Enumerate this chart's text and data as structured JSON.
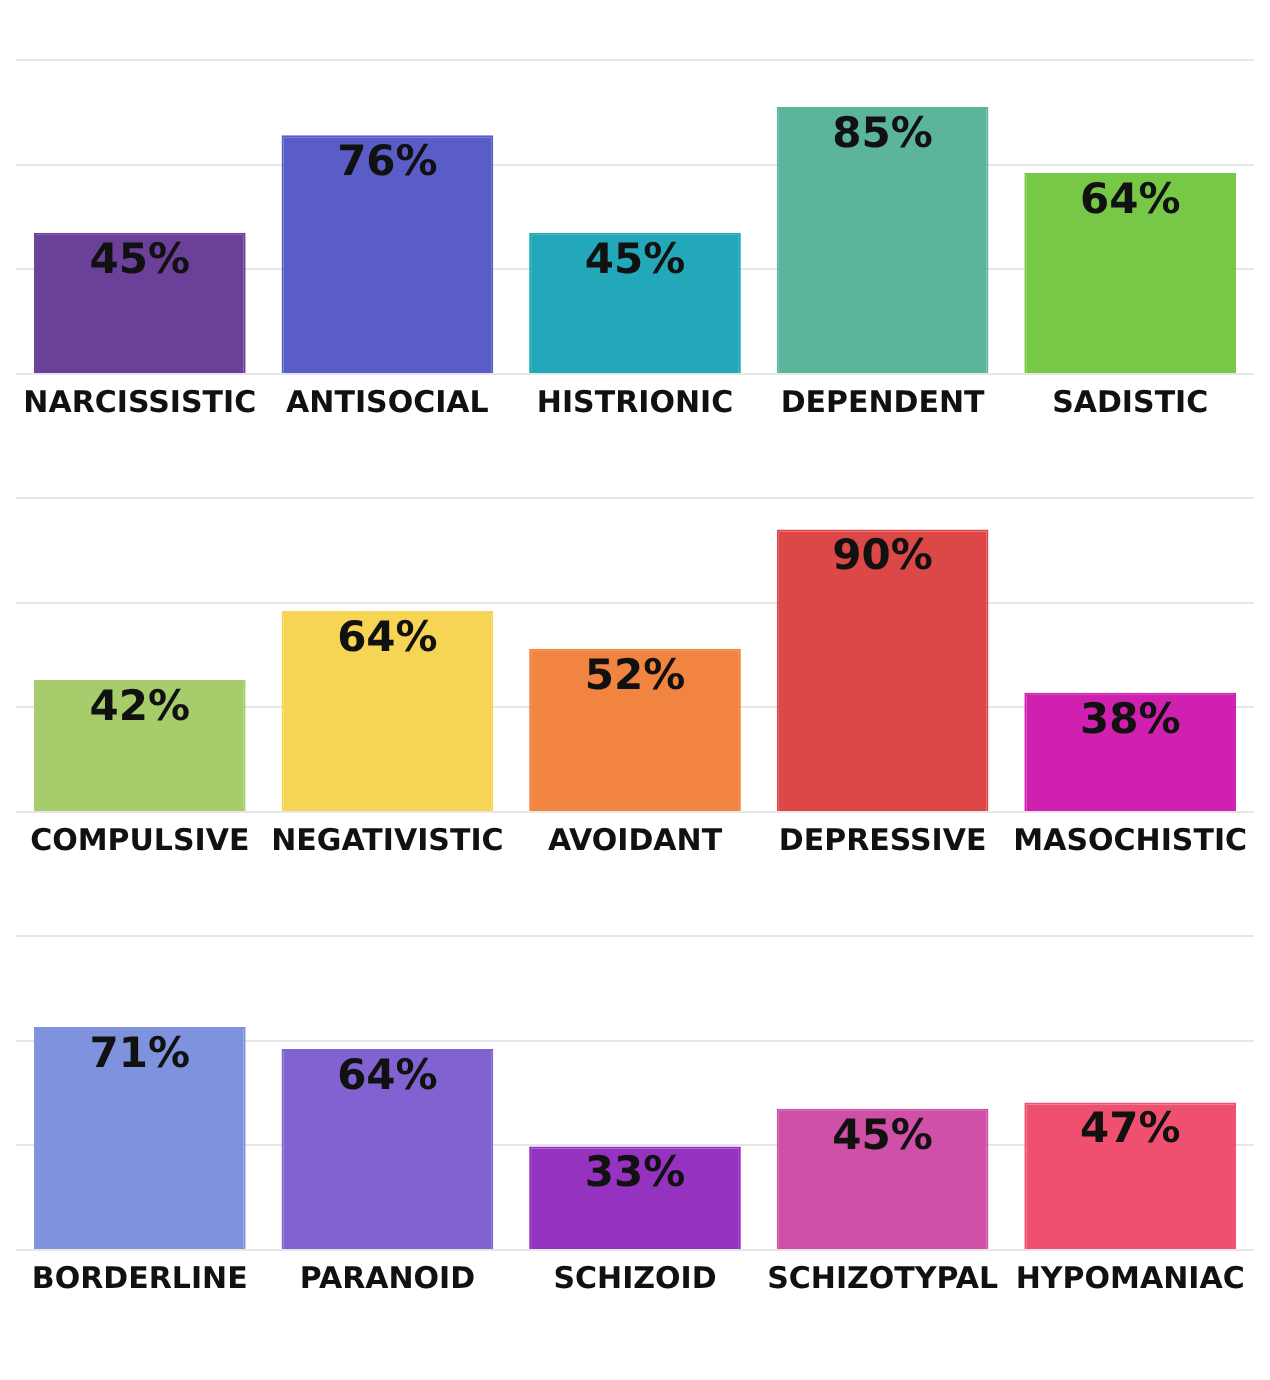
{
  "chart_data": [
    {
      "type": "bar",
      "categories": [
        "NARCISSISTIC",
        "ANTISOCIAL",
        "HISTRIONIC",
        "DEPENDENT",
        "SADISTIC"
      ],
      "values": [
        45,
        76,
        45,
        85,
        64
      ],
      "value_labels": [
        "45%",
        "76%",
        "45%",
        "85%",
        "64%"
      ],
      "colors": [
        "#6a4098",
        "#5a5cc8",
        "#22a8b8",
        "#5cb49c",
        "#78c848"
      ],
      "ylim": [
        0,
        100
      ],
      "yticks": [
        {
          "value": 0,
          "label": null
        },
        {
          "value": 33.3,
          "label": null
        },
        {
          "value": 66.7,
          "label": null
        },
        {
          "value": 100,
          "label": null
        }
      ],
      "grid": "y",
      "tick_labels": "x",
      "legend": false
    },
    {
      "type": "bar",
      "categories": [
        "COMPULSIVE",
        "NEGATIVISTIC",
        "AVOIDANT",
        "DEPRESSIVE",
        "MASOCHISTIC"
      ],
      "values": [
        42,
        64,
        52,
        90,
        38
      ],
      "value_labels": [
        "42%",
        "64%",
        "52%",
        "90%",
        "38%"
      ],
      "colors": [
        "#a6cc6c",
        "#f6d454",
        "#f08440",
        "#dc4848",
        "#d020b0"
      ],
      "ylim": [
        0,
        100
      ],
      "yticks": [
        {
          "value": 0,
          "label": null
        },
        {
          "value": 33.3,
          "label": null
        },
        {
          "value": 66.7,
          "label": null
        },
        {
          "value": 100,
          "label": null
        }
      ],
      "grid": "y",
      "tick_labels": "x",
      "legend": false
    },
    {
      "type": "bar",
      "categories": [
        "BORDERLINE",
        "PARANOID",
        "SCHIZOID",
        "SCHIZOTYPAL",
        "HYPOMANIAC"
      ],
      "values": [
        71,
        64,
        33,
        45,
        47
      ],
      "value_labels": [
        "71%",
        "64%",
        "33%",
        "45%",
        "47%"
      ],
      "colors": [
        "#7f92de",
        "#8062d0",
        "#9632c0",
        "#d050a8",
        "#f05070"
      ],
      "ylim": [
        0,
        100
      ],
      "yticks": [
        {
          "value": 0,
          "label": null
        },
        {
          "value": 33.3,
          "label": null
        },
        {
          "value": 66.7,
          "label": null
        },
        {
          "value": 100,
          "label": null
        }
      ],
      "grid": "y",
      "tick_labels": "x",
      "legend": false
    }
  ]
}
